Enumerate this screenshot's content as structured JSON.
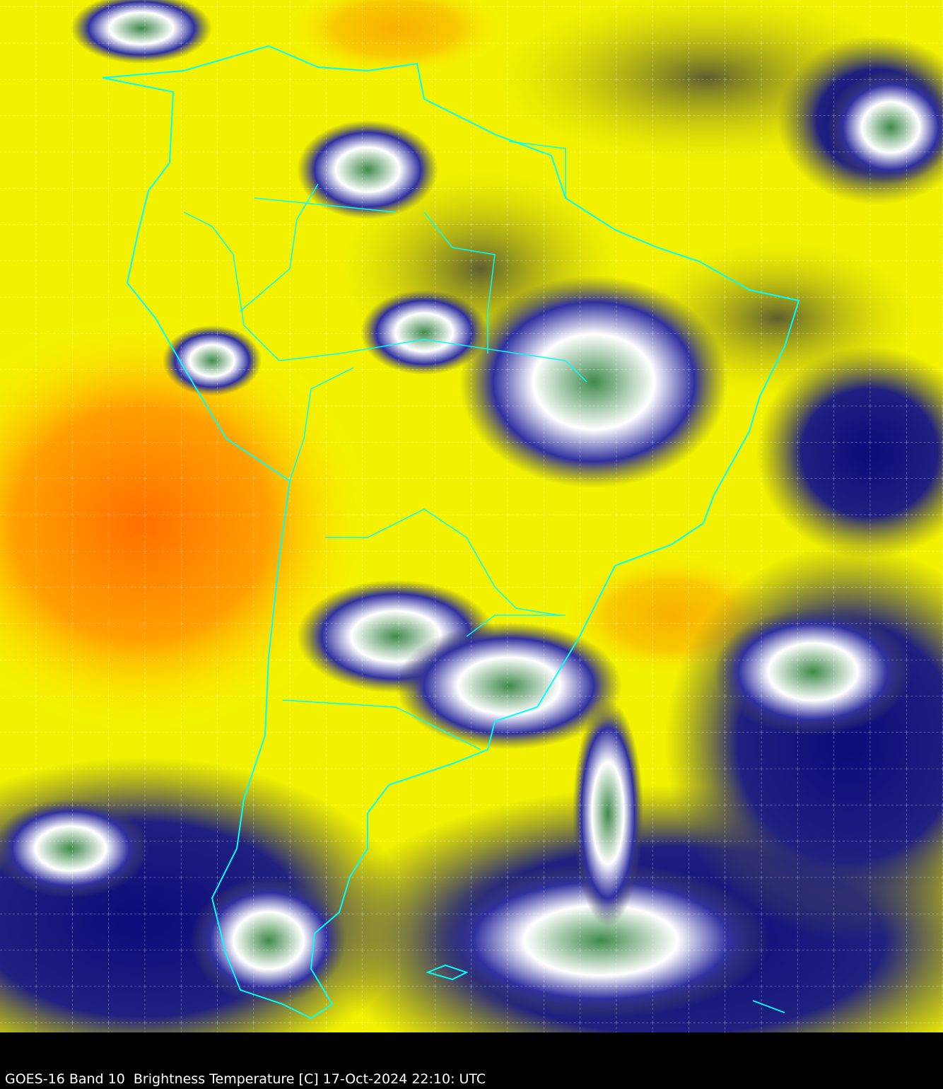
{
  "caption": "GOES-16 Band 10  Brightness Temperature [C] 17-Oct-2024 22:10: UTC",
  "colors": {
    "warm_dry": "#ffff00",
    "hot": "#ff7f00",
    "moist": "#6b6b2a",
    "cold_cloud": "#101080",
    "coldest_cloud": "#3a8a4a",
    "cloud_white": "#ffffff",
    "borders": "#00ffff",
    "grid": "#ffffff"
  }
}
